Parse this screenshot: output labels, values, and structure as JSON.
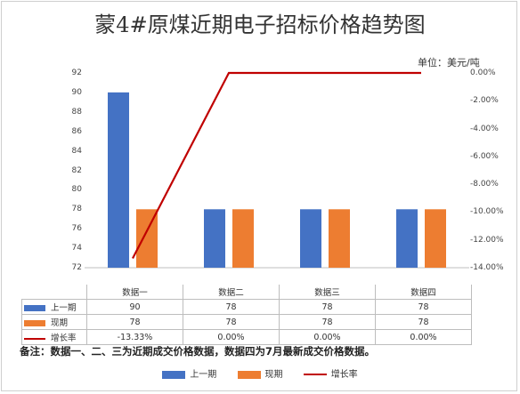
{
  "chart_data": {
    "type": "bar",
    "title": "蒙4#原煤近期电子招标价格趋势图",
    "unit_label": "单位：美元/吨",
    "categories": [
      "数据一",
      "数据二",
      "数据三",
      "数据四"
    ],
    "ylim": [
      72,
      92
    ],
    "y_ticks": [
      "92",
      "90",
      "88",
      "86",
      "84",
      "82",
      "80",
      "78",
      "76",
      "74",
      "72"
    ],
    "y2lim": [
      -14,
      0
    ],
    "y2_ticks": [
      "0.00%",
      "-2.00%",
      "-4.00%",
      "-6.00%",
      "-8.00%",
      "-10.00%",
      "-12.00%",
      "-14.00%"
    ],
    "series": [
      {
        "name": "上一期",
        "type": "bar",
        "axis": "left",
        "values": [
          90,
          78,
          78,
          78
        ],
        "labels": [
          "90",
          "78",
          "78",
          "78"
        ],
        "color": "#4472c4"
      },
      {
        "name": "现期",
        "type": "bar",
        "axis": "left",
        "values": [
          78,
          78,
          78,
          78
        ],
        "labels": [
          "78",
          "78",
          "78",
          "78"
        ],
        "color": "#ed7d31"
      },
      {
        "name": "增长率",
        "type": "line",
        "axis": "right",
        "values": [
          -13.33,
          0,
          0,
          0
        ],
        "labels": [
          "-13.33%",
          "0.00%",
          "0.00%",
          "0.00%"
        ],
        "color": "#c00000"
      }
    ],
    "grid": false,
    "legend_position": "bottom",
    "data_table": true
  },
  "note": "备注：数据一、二、三为近期成交价格数据，数据四为7月最新成交价格数据。"
}
